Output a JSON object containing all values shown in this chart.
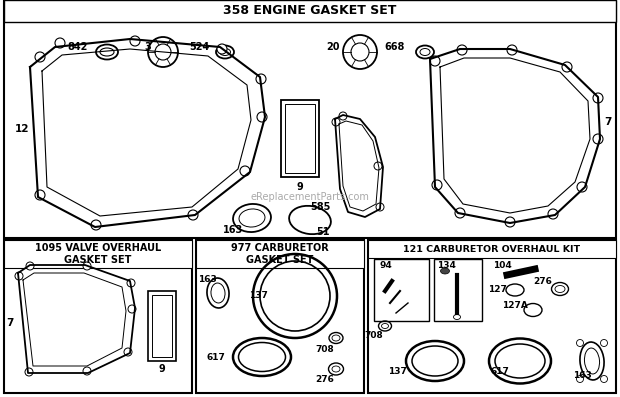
{
  "title": "358 ENGINE GASKET SET",
  "watermark": "eReplacementParts.com",
  "bg_color": "#ffffff",
  "section1_title": "1095 VALVE OVERHAUL\nGASKET SET",
  "section2_title": "977 CARBURETOR\nGASKET SET",
  "section3_title": "121 CARBURETOR OVERHAUL KIT"
}
